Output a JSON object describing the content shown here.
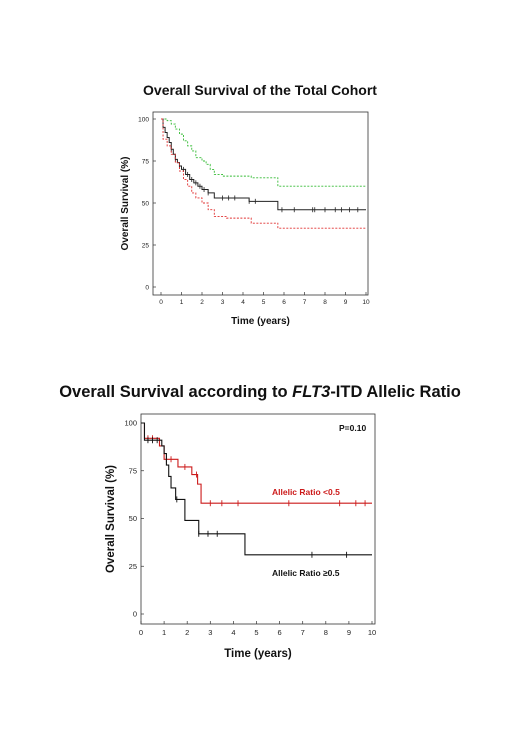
{
  "chart_data": [
    {
      "type": "line",
      "title": "Overall Survival of the Total Cohort",
      "xlabel": "Time (years)",
      "ylabel": "Overall Survival (%)",
      "xlim": [
        0,
        10
      ],
      "ylim": [
        0,
        100
      ],
      "xticks": [
        "0",
        "1",
        "2",
        "3",
        "4",
        "5",
        "6",
        "7",
        "8",
        "9",
        "10"
      ],
      "yticks": [
        "0",
        "25",
        "50",
        "75",
        "100"
      ],
      "colors": {
        "estimate": "#222222",
        "upper": "#33bb33",
        "lower": "#e03030"
      },
      "series": [
        {
          "key": "estimate",
          "x": [
            0,
            0.1,
            0.2,
            0.3,
            0.4,
            0.5,
            0.6,
            0.7,
            0.8,
            0.9,
            1.0,
            1.2,
            1.4,
            1.6,
            1.8,
            2.0,
            2.3,
            2.6,
            3.3,
            4.3,
            5.7,
            10
          ],
          "y": [
            100,
            95,
            92,
            89,
            86,
            82,
            79,
            76,
            74,
            72,
            70,
            67,
            64,
            62,
            60,
            58,
            56,
            53,
            53,
            51,
            46,
            46
          ],
          "censored": [
            0.5,
            0.7,
            0.9,
            1.1,
            1.3,
            1.5,
            1.7,
            1.9,
            2.1,
            2.3,
            3.0,
            3.3,
            3.6,
            4.3,
            4.6,
            5.9,
            6.5,
            7.4,
            7.5,
            8.0,
            8.5,
            8.8,
            9.2,
            9.6
          ]
        },
        {
          "key": "upper",
          "x": [
            0,
            0.3,
            0.5,
            0.7,
            0.9,
            1.1,
            1.3,
            1.5,
            1.7,
            2.0,
            2.2,
            2.4,
            2.6,
            3.0,
            4.4,
            5.7,
            10
          ],
          "y": [
            100,
            99,
            97,
            94,
            91,
            87,
            84,
            81,
            77,
            75,
            73,
            70,
            67,
            66,
            65,
            60,
            60
          ]
        },
        {
          "key": "lower",
          "x": [
            0,
            0.1,
            0.3,
            0.5,
            0.7,
            0.9,
            1.1,
            1.3,
            1.5,
            1.7,
            2.0,
            2.3,
            2.6,
            3.2,
            4.4,
            5.7,
            10
          ],
          "y": [
            100,
            88,
            84,
            79,
            74,
            69,
            64,
            60,
            56,
            53,
            50,
            46,
            42,
            41,
            38,
            35,
            35
          ]
        }
      ]
    },
    {
      "type": "line",
      "title_parts": [
        "Overall Survival according to ",
        "FLT3",
        "-ITD Allelic Ratio"
      ],
      "xlabel": "Time (years)",
      "ylabel": "Overall Survival (%)",
      "xlim": [
        0,
        10
      ],
      "ylim": [
        0,
        100
      ],
      "xticks": [
        "0",
        "1",
        "2",
        "3",
        "4",
        "5",
        "6",
        "7",
        "8",
        "9",
        "10"
      ],
      "yticks": [
        "0",
        "25",
        "50",
        "75",
        "100"
      ],
      "annotation": "P=0.10",
      "series": [
        {
          "name": "Allelic Ratio <0.5",
          "color": "#cc1a1a",
          "x": [
            0,
            0.15,
            0.8,
            1.0,
            1.6,
            2.2,
            2.45,
            2.6,
            10
          ],
          "y": [
            100,
            92,
            88,
            81,
            77,
            73,
            68,
            58,
            58
          ],
          "censored": [
            0.3,
            0.5,
            1.1,
            1.3,
            1.9,
            2.4,
            3.0,
            3.5,
            4.2,
            6.4,
            8.6,
            9.3,
            9.7
          ]
        },
        {
          "name": "Allelic Ratio ≥0.5",
          "color": "#111111",
          "x": [
            0,
            0.15,
            0.9,
            1.0,
            1.1,
            1.2,
            1.3,
            1.5,
            1.9,
            2.5,
            4.5,
            10
          ],
          "y": [
            100,
            91,
            88,
            84,
            78,
            72,
            66,
            60,
            49,
            42,
            31,
            31
          ],
          "censored": [
            0.3,
            0.5,
            0.7,
            1.55,
            2.5,
            2.9,
            3.3,
            7.4,
            8.9
          ]
        }
      ]
    }
  ]
}
